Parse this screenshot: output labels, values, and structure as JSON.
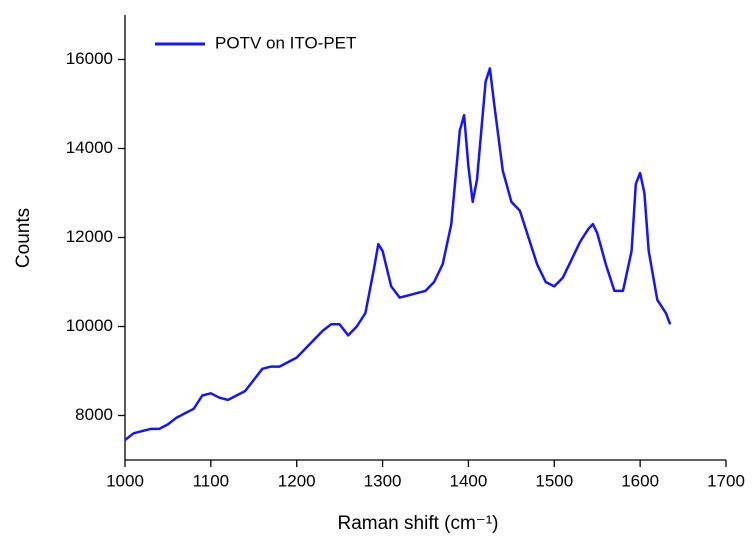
{
  "chart_data": {
    "type": "line",
    "x_label": "Raman shift (cm⁻¹)",
    "y_label": "Counts",
    "xlim": [
      1000,
      1700
    ],
    "xticks": [
      1000,
      1100,
      1200,
      1300,
      1400,
      1500,
      1600,
      1700
    ],
    "ylim": [
      7000,
      17000
    ],
    "yticks": [
      8000,
      10000,
      12000,
      14000,
      16000
    ],
    "legend": "top-left",
    "series": [
      {
        "name": "POTV on ITO-PET",
        "color": "#1414ff",
        "x": [
          1000,
          1010,
          1020,
          1030,
          1040,
          1050,
          1060,
          1070,
          1080,
          1090,
          1100,
          1110,
          1120,
          1130,
          1140,
          1150,
          1160,
          1170,
          1180,
          1190,
          1200,
          1210,
          1220,
          1230,
          1240,
          1250,
          1260,
          1270,
          1280,
          1290,
          1295,
          1300,
          1310,
          1320,
          1330,
          1340,
          1350,
          1360,
          1370,
          1380,
          1390,
          1395,
          1400,
          1405,
          1410,
          1420,
          1425,
          1430,
          1440,
          1450,
          1460,
          1470,
          1480,
          1490,
          1500,
          1510,
          1520,
          1530,
          1540,
          1545,
          1550,
          1560,
          1570,
          1580,
          1590,
          1595,
          1600,
          1605,
          1610,
          1620,
          1630,
          1635
        ],
        "values": [
          7450,
          7600,
          7650,
          7700,
          7700,
          7800,
          7950,
          8050,
          8150,
          8450,
          8500,
          8400,
          8350,
          8450,
          8550,
          8800,
          9050,
          9100,
          9100,
          9200,
          9300,
          9500,
          9700,
          9900,
          10050,
          10050,
          9800,
          10000,
          10300,
          11300,
          11850,
          11700,
          10900,
          10650,
          10700,
          10750,
          10800,
          11000,
          11400,
          12300,
          14400,
          14750,
          13600,
          12800,
          13300,
          15500,
          15800,
          15000,
          13500,
          12800,
          12600,
          12000,
          11400,
          11000,
          10900,
          11100,
          11500,
          11900,
          12200,
          12300,
          12100,
          11400,
          10800,
          10800,
          11700,
          13200,
          13450,
          13000,
          11700,
          10600,
          10300,
          10050
        ]
      }
    ]
  }
}
